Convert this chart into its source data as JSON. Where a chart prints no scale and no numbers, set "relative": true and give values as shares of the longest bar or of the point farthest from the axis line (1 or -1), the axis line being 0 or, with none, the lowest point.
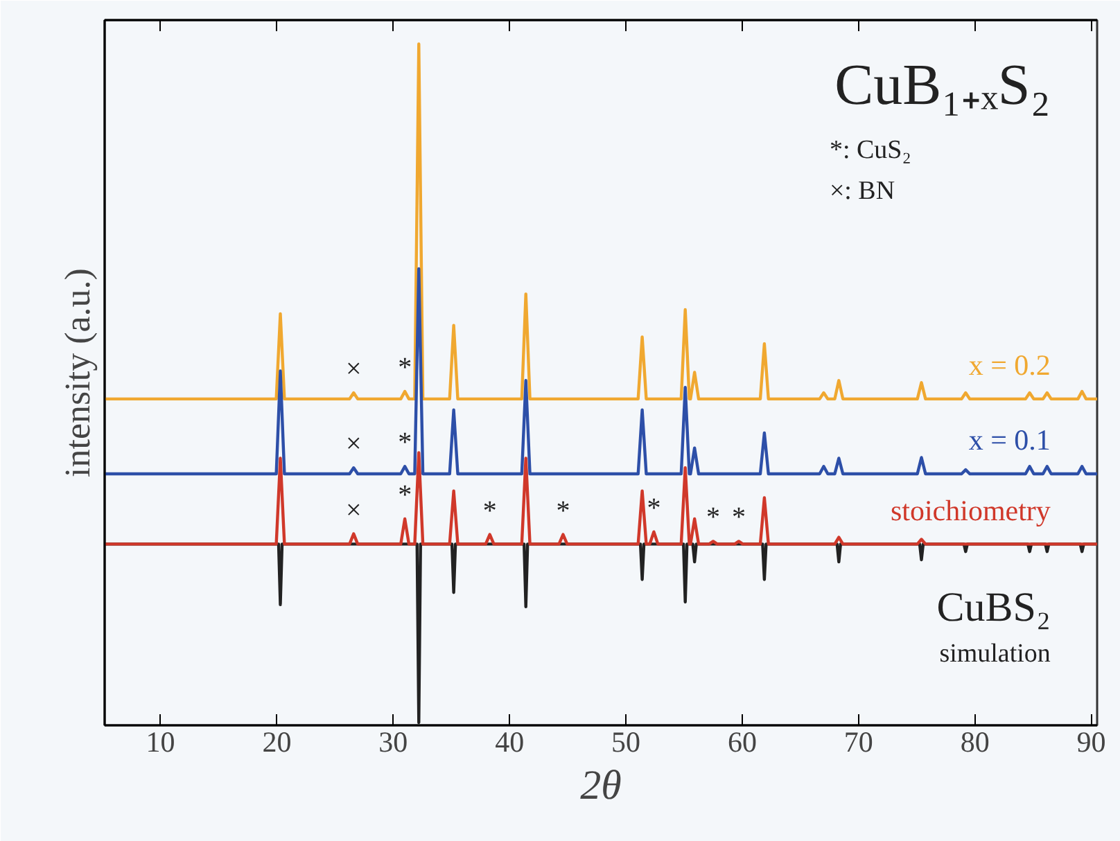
{
  "chart_data": {
    "type": "line",
    "relative": true,
    "title": "CuB₁₊ₓS₂",
    "xlabel": "2θ",
    "ylabel": "intensity (a.u.)",
    "xlim": [
      5.2,
      90.5
    ],
    "xticks": [
      10,
      20,
      30,
      40,
      50,
      60,
      70,
      80,
      90
    ],
    "grid": false,
    "marker": "none",
    "line_style": "solid",
    "series": [
      {
        "name": "CuBS₂ simulation",
        "color": "#222222",
        "x": [
          5.2,
          20.15,
          20.3,
          20.45,
          32.05,
          32.2,
          32.35,
          35.05,
          35.2,
          35.35,
          41.25,
          41.4,
          41.55,
          51.25,
          51.4,
          51.55,
          54.95,
          55.1,
          55.25,
          55.75,
          55.9,
          56.05,
          61.75,
          61.9,
          62.05,
          68.15,
          68.3,
          68.45,
          75.25,
          75.4,
          75.55,
          79.05,
          79.2,
          79.35,
          84.55,
          84.7,
          84.85,
          86.05,
          86.2,
          86.35,
          89.05,
          89.2,
          89.35,
          90.5
        ],
        "values": [
          0.266,
          0.266,
          0.177,
          0.266,
          0.266,
          0.004,
          0.266,
          0.266,
          0.195,
          0.266,
          0.266,
          0.174,
          0.266,
          0.266,
          0.214,
          0.266,
          0.266,
          0.181,
          0.266,
          0.266,
          0.24,
          0.266,
          0.266,
          0.214,
          0.266,
          0.266,
          0.24,
          0.266,
          0.266,
          0.243,
          0.266,
          0.266,
          0.255,
          0.266,
          0.266,
          0.255,
          0.266,
          0.266,
          0.255,
          0.266,
          0.266,
          0.255,
          0.266,
          0.266
        ]
      },
      {
        "name": "x = 0.2",
        "color": "#f0a830",
        "x": [
          5.2,
          19.95,
          20.3,
          20.65,
          26.25,
          26.6,
          26.95,
          30.65,
          31.0,
          31.35,
          31.85,
          32.2,
          32.55,
          34.85,
          35.2,
          35.55,
          41.05,
          41.4,
          41.75,
          51.05,
          51.4,
          51.75,
          54.75,
          55.1,
          55.45,
          55.55,
          55.9,
          56.25,
          61.55,
          61.9,
          62.25,
          66.65,
          67.0,
          67.35,
          67.95,
          68.3,
          68.65,
          75.05,
          75.4,
          75.75,
          78.85,
          79.2,
          79.55,
          84.35,
          84.7,
          85.05,
          85.85,
          86.2,
          86.55,
          88.85,
          89.2,
          89.55,
          90.5
        ],
        "values": [
          0.479,
          0.479,
          0.604,
          0.479,
          0.479,
          0.488,
          0.479,
          0.479,
          0.49,
          0.479,
          0.479,
          1.0,
          0.479,
          0.479,
          0.587,
          0.479,
          0.479,
          0.633,
          0.479,
          0.479,
          0.57,
          0.479,
          0.479,
          0.61,
          0.479,
          0.479,
          0.518,
          0.479,
          0.479,
          0.56,
          0.479,
          0.479,
          0.488,
          0.479,
          0.479,
          0.506,
          0.479,
          0.479,
          0.503,
          0.479,
          0.479,
          0.488,
          0.479,
          0.479,
          0.488,
          0.479,
          0.479,
          0.488,
          0.479,
          0.479,
          0.49,
          0.479,
          0.479
        ]
      },
      {
        "name": "x = 0.1",
        "color": "#2d4fa8",
        "x": [
          5.2,
          19.95,
          20.3,
          20.65,
          26.25,
          26.6,
          26.95,
          30.65,
          31.0,
          31.35,
          31.85,
          32.2,
          32.55,
          34.85,
          35.2,
          35.55,
          41.05,
          41.4,
          41.75,
          51.05,
          51.4,
          51.75,
          54.75,
          55.1,
          55.45,
          55.55,
          55.9,
          56.25,
          61.55,
          61.9,
          62.25,
          66.65,
          67.0,
          67.35,
          67.95,
          68.3,
          68.65,
          75.05,
          75.4,
          75.75,
          78.85,
          79.2,
          79.55,
          84.35,
          84.7,
          85.05,
          85.85,
          86.2,
          86.55,
          88.85,
          89.2,
          89.55,
          90.5
        ],
        "values": [
          0.369,
          0.369,
          0.52,
          0.369,
          0.369,
          0.378,
          0.369,
          0.369,
          0.38,
          0.369,
          0.369,
          0.67,
          0.369,
          0.369,
          0.463,
          0.369,
          0.369,
          0.506,
          0.369,
          0.369,
          0.463,
          0.369,
          0.369,
          0.496,
          0.369,
          0.369,
          0.407,
          0.369,
          0.369,
          0.429,
          0.369,
          0.369,
          0.38,
          0.369,
          0.369,
          0.392,
          0.369,
          0.369,
          0.393,
          0.369,
          0.369,
          0.375,
          0.369,
          0.369,
          0.38,
          0.369,
          0.369,
          0.38,
          0.369,
          0.369,
          0.38,
          0.369,
          0.369
        ]
      },
      {
        "name": "stoichiometry",
        "color": "#d0382a",
        "x": [
          5.2,
          19.95,
          20.3,
          20.65,
          26.25,
          26.6,
          26.95,
          30.65,
          31.0,
          31.35,
          31.85,
          32.2,
          32.55,
          34.85,
          35.2,
          35.55,
          37.95,
          38.3,
          38.65,
          41.05,
          41.4,
          41.75,
          44.25,
          44.6,
          44.95,
          51.05,
          51.4,
          51.75,
          52.05,
          52.4,
          52.75,
          54.75,
          55.1,
          55.45,
          55.55,
          55.9,
          56.25,
          57.15,
          57.5,
          57.85,
          59.35,
          59.7,
          60.05,
          61.55,
          61.9,
          62.25,
          67.95,
          68.3,
          68.65,
          75.05,
          75.4,
          75.75,
          90.5
        ],
        "values": [
          0.266,
          0.266,
          0.392,
          0.266,
          0.266,
          0.281,
          0.266,
          0.266,
          0.303,
          0.266,
          0.266,
          0.4,
          0.266,
          0.266,
          0.344,
          0.266,
          0.266,
          0.28,
          0.266,
          0.266,
          0.392,
          0.266,
          0.266,
          0.28,
          0.266,
          0.266,
          0.344,
          0.266,
          0.266,
          0.284,
          0.266,
          0.266,
          0.378,
          0.266,
          0.266,
          0.303,
          0.266,
          0.266,
          0.27,
          0.266,
          0.266,
          0.27,
          0.266,
          0.266,
          0.334,
          0.266,
          0.266,
          0.276,
          0.266,
          0.266,
          0.273,
          0.266,
          0.266
        ]
      }
    ],
    "annotations": [
      "*: CuS₂",
      "×: BN",
      {
        "text": "×",
        "x": 26.6,
        "y": 0.488
      },
      {
        "text": "*",
        "x": 31.0,
        "y": 0.49
      },
      {
        "text": "×",
        "x": 26.6,
        "y": 0.378
      },
      {
        "text": "*",
        "x": 31.0,
        "y": 0.38
      },
      {
        "text": "×",
        "x": 26.6,
        "y": 0.281
      },
      {
        "text": "*",
        "x": 31.0,
        "y": 0.303
      },
      {
        "text": "*",
        "x": 38.3,
        "y": 0.28
      },
      {
        "text": "*",
        "x": 44.6,
        "y": 0.28
      },
      {
        "text": "*",
        "x": 52.4,
        "y": 0.284
      },
      {
        "text": "*",
        "x": 57.5,
        "y": 0.27
      },
      {
        "text": "*",
        "x": 59.7,
        "y": 0.27
      }
    ]
  }
}
